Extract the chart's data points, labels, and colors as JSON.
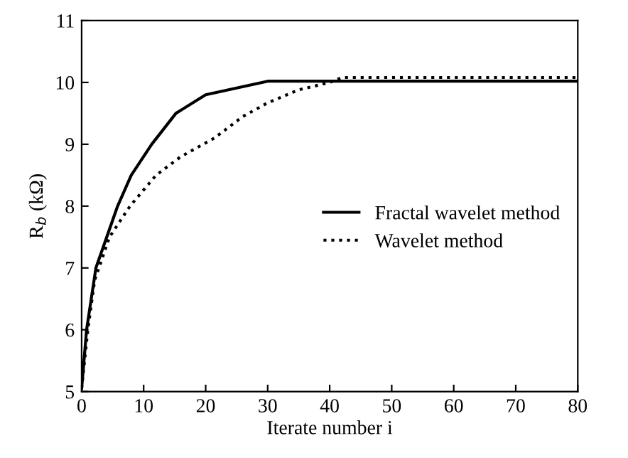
{
  "chart_data": {
    "type": "line",
    "xlabel": "Iterate number i",
    "ylabel": "R$_{b}$ (kΩ)",
    "xlim": [
      0,
      80
    ],
    "ylim": [
      5,
      11
    ],
    "xticks": [
      0,
      10,
      20,
      30,
      40,
      50,
      60,
      70,
      80
    ],
    "yticks": [
      5,
      6,
      7,
      8,
      9,
      10,
      11
    ],
    "grid": false,
    "legend": "center right",
    "marker": "none",
    "series": [
      {
        "name": "Fractal wavelet method",
        "color": "#000000",
        "line_style": "solid",
        "x": [
          0,
          0.8,
          2.3,
          5.8,
          8,
          11.3,
          15.2,
          20,
          30,
          80
        ],
        "values": [
          5.05,
          6.0,
          7.0,
          8.0,
          8.5,
          9.0,
          9.5,
          9.8,
          10.02,
          10.02
        ]
      },
      {
        "name": "Wavelet method",
        "color": "#000000",
        "line_style": "dotted",
        "x": [
          0,
          1,
          2.1,
          4.5,
          7.8,
          12,
          16,
          21.4,
          26,
          30,
          35,
          40,
          42,
          80
        ],
        "values": [
          5.05,
          6.0,
          6.8,
          7.5,
          8.0,
          8.5,
          8.8,
          9.1,
          9.45,
          9.67,
          9.88,
          10.0,
          10.08,
          10.08
        ]
      }
    ]
  }
}
